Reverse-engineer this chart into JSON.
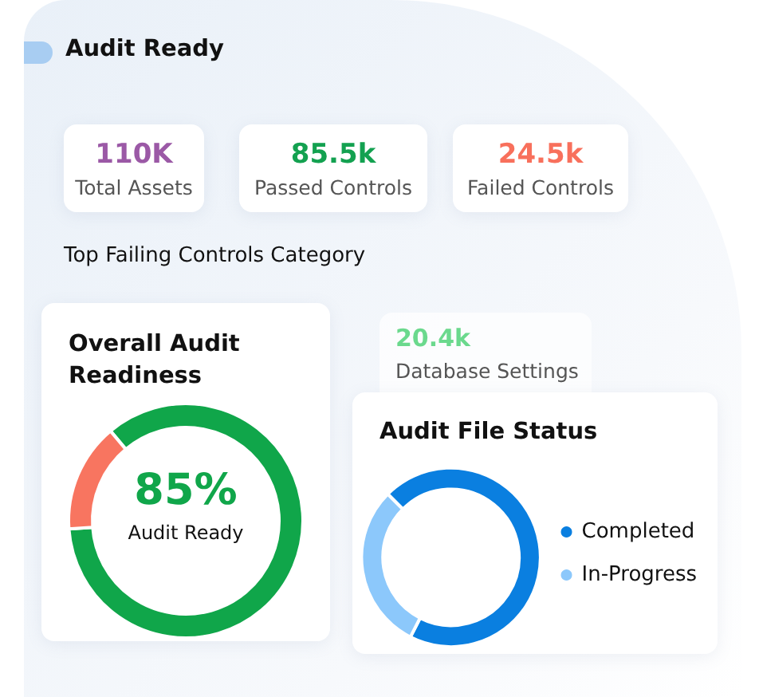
{
  "chart_data": [
    {
      "type": "other",
      "title": "Audit Ready",
      "annotations": [
        "110K",
        "Total Assets",
        "85.5k",
        "Passed Controls",
        "24.5k",
        "Failed Controls",
        "Top Failing Controls Category",
        "20.4k",
        "Database Settings"
      ]
    },
    {
      "type": "donut",
      "title": "Overall Audit Readiness",
      "categories": [
        null,
        null
      ],
      "values": [
        85,
        15
      ],
      "colors": [
        "#10a64a",
        "#f87560"
      ],
      "value_labels": [
        "85%",
        null
      ],
      "annotations": [
        "Audit Ready"
      ]
    },
    {
      "type": "donut",
      "title": "Audit File Status",
      "categories": [
        "Completed",
        "In-Progress"
      ],
      "values": [
        70,
        30
      ],
      "colors": [
        "#0a7fe0",
        "#8cc8fb"
      ],
      "legend": "right"
    }
  ]
}
